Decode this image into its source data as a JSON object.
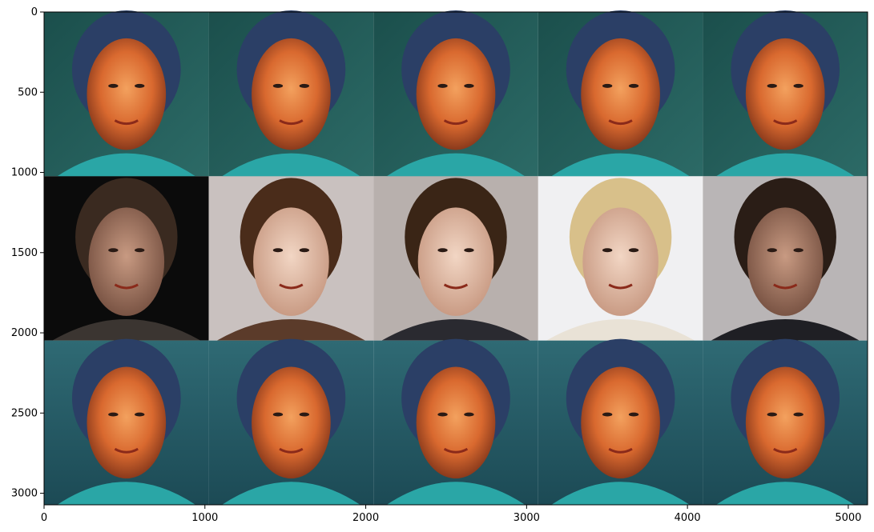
{
  "figure": {
    "description_free": true,
    "grid": {
      "rows": 3,
      "cols": 5,
      "row_themes": [
        "teal-stylized",
        "natural-photos",
        "teal-stylized"
      ]
    },
    "x_axis": {
      "range": [
        0,
        5120
      ],
      "ticks": [
        {
          "value": 0,
          "label": "0"
        },
        {
          "value": 1000,
          "label": "1000"
        },
        {
          "value": 2000,
          "label": "2000"
        },
        {
          "value": 3000,
          "label": "3000"
        },
        {
          "value": 4000,
          "label": "4000"
        },
        {
          "value": 5000,
          "label": "5000"
        }
      ]
    },
    "y_axis": {
      "range": [
        0,
        3072
      ],
      "inverted": true,
      "ticks": [
        {
          "value": 0,
          "label": "0"
        },
        {
          "value": 500,
          "label": "500"
        },
        {
          "value": 1000,
          "label": "1000"
        },
        {
          "value": 1500,
          "label": "1500"
        },
        {
          "value": 2000,
          "label": "2000"
        },
        {
          "value": 2500,
          "label": "2500"
        },
        {
          "value": 3000,
          "label": "3000"
        }
      ]
    },
    "colors": {
      "teal_bg": "#1f5a55",
      "teal_shirt": "#2aa6a6",
      "skin_warm": "#e07a3c",
      "hair_blue": "#2b3f66"
    }
  }
}
